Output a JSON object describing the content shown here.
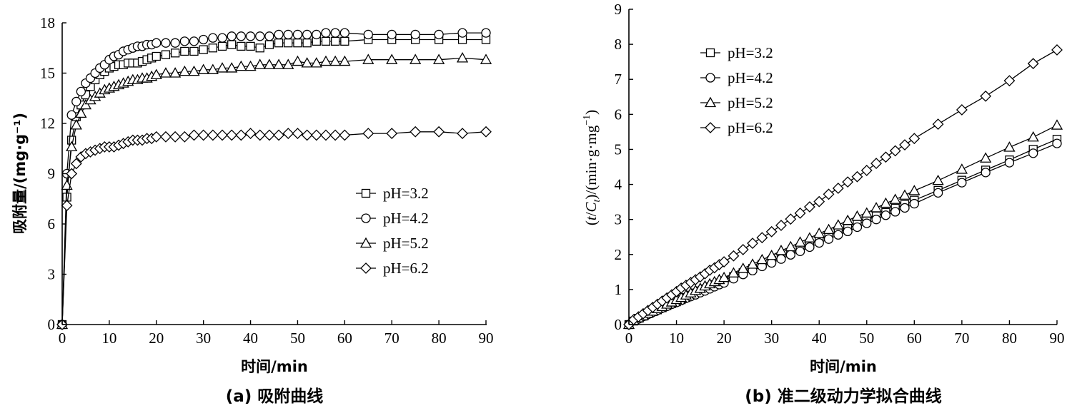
{
  "chart_data": [
    {
      "type": "line",
      "caption": "(a) 吸附曲线",
      "xlabel": "时间/min",
      "ylabel": "吸附量/(mg·g⁻¹)",
      "xlim": [
        0,
        90
      ],
      "ylim": [
        0,
        18
      ],
      "xticks": [
        0,
        10,
        20,
        30,
        40,
        50,
        60,
        70,
        80,
        90
      ],
      "yticks": [
        0,
        3,
        6,
        9,
        12,
        15,
        18
      ],
      "grid": false,
      "legend_position": "right-middle",
      "series": [
        {
          "name": "pH=3.2",
          "marker": "square",
          "x": [
            0,
            1,
            2,
            3,
            4,
            5,
            6,
            7,
            8,
            9,
            10,
            11,
            12,
            13,
            14,
            15,
            16,
            17,
            18,
            19,
            20,
            22,
            24,
            26,
            28,
            30,
            32,
            34,
            36,
            38,
            40,
            42,
            44,
            46,
            48,
            50,
            52,
            54,
            56,
            58,
            60,
            65,
            70,
            75,
            80,
            85,
            90
          ],
          "y": [
            0,
            7.6,
            11.0,
            12.4,
            13.1,
            13.7,
            14.2,
            14.6,
            14.9,
            15.1,
            15.3,
            15.4,
            15.5,
            15.5,
            15.6,
            15.6,
            15.6,
            15.7,
            15.8,
            15.9,
            16.0,
            16.1,
            16.2,
            16.3,
            16.3,
            16.4,
            16.5,
            16.6,
            16.7,
            16.6,
            16.6,
            16.5,
            16.7,
            16.8,
            16.8,
            16.8,
            16.8,
            16.9,
            16.9,
            16.9,
            16.9,
            17.0,
            17.0,
            17.0,
            17.0,
            17.0,
            17.0
          ]
        },
        {
          "name": "pH=4.2",
          "marker": "circle",
          "x": [
            0,
            1,
            2,
            3,
            4,
            5,
            6,
            7,
            8,
            9,
            10,
            11,
            12,
            13,
            14,
            15,
            16,
            17,
            18,
            19,
            20,
            22,
            24,
            26,
            28,
            30,
            32,
            34,
            36,
            38,
            40,
            42,
            44,
            46,
            48,
            50,
            52,
            54,
            56,
            58,
            60,
            65,
            70,
            75,
            80,
            85,
            90
          ],
          "y": [
            0,
            9.0,
            12.5,
            13.3,
            13.9,
            14.4,
            14.7,
            15.0,
            15.3,
            15.5,
            15.8,
            16.0,
            16.1,
            16.3,
            16.4,
            16.5,
            16.6,
            16.6,
            16.7,
            16.7,
            16.8,
            16.8,
            16.8,
            16.9,
            16.9,
            17.0,
            17.1,
            17.1,
            17.2,
            17.2,
            17.2,
            17.2,
            17.2,
            17.3,
            17.3,
            17.3,
            17.3,
            17.3,
            17.4,
            17.4,
            17.4,
            17.3,
            17.3,
            17.3,
            17.3,
            17.4,
            17.4
          ]
        },
        {
          "name": "pH=5.2",
          "marker": "triangle",
          "x": [
            0,
            1,
            2,
            3,
            4,
            5,
            6,
            7,
            8,
            9,
            10,
            11,
            12,
            13,
            14,
            15,
            16,
            17,
            18,
            19,
            20,
            22,
            24,
            26,
            28,
            30,
            32,
            34,
            36,
            38,
            40,
            42,
            44,
            46,
            48,
            50,
            52,
            54,
            56,
            58,
            60,
            65,
            70,
            75,
            80,
            85,
            90
          ],
          "y": [
            0,
            8.3,
            10.6,
            11.9,
            12.6,
            13.1,
            13.4,
            13.6,
            13.8,
            14.0,
            14.1,
            14.2,
            14.3,
            14.4,
            14.5,
            14.6,
            14.6,
            14.7,
            14.7,
            14.8,
            14.9,
            15.0,
            15.0,
            15.1,
            15.1,
            15.2,
            15.2,
            15.3,
            15.3,
            15.4,
            15.4,
            15.5,
            15.5,
            15.5,
            15.5,
            15.7,
            15.6,
            15.6,
            15.7,
            15.7,
            15.7,
            15.8,
            15.8,
            15.8,
            15.8,
            15.9,
            15.8
          ]
        },
        {
          "name": "pH=6.2",
          "marker": "diamond",
          "x": [
            0,
            1,
            2,
            3,
            4,
            5,
            6,
            7,
            8,
            9,
            10,
            11,
            12,
            13,
            14,
            15,
            16,
            17,
            18,
            19,
            20,
            22,
            24,
            26,
            28,
            30,
            32,
            34,
            36,
            38,
            40,
            42,
            44,
            46,
            48,
            50,
            52,
            54,
            56,
            58,
            60,
            65,
            70,
            75,
            80,
            85,
            90
          ],
          "y": [
            0,
            7.1,
            9.0,
            9.6,
            10.0,
            10.2,
            10.3,
            10.4,
            10.5,
            10.6,
            10.6,
            10.6,
            10.7,
            10.8,
            10.9,
            11.0,
            11.0,
            11.0,
            11.1,
            11.1,
            11.2,
            11.2,
            11.2,
            11.2,
            11.3,
            11.3,
            11.3,
            11.3,
            11.3,
            11.3,
            11.4,
            11.3,
            11.3,
            11.3,
            11.4,
            11.4,
            11.3,
            11.3,
            11.3,
            11.3,
            11.3,
            11.4,
            11.4,
            11.5,
            11.5,
            11.4,
            11.5
          ]
        }
      ]
    },
    {
      "type": "line",
      "caption": "(b) 准二级动力学拟合曲线",
      "xlabel": "时间/min",
      "ylabel": "(t/C_t)/(min·g·mg⁻¹)",
      "ylabel_parts": {
        "open": "(",
        "t": "t",
        "slash": "/",
        "C": "C",
        "sub": "t",
        "rest": ")/(min·g·mg",
        "sup": "−1",
        "close": ")"
      },
      "xlim": [
        0,
        90
      ],
      "ylim": [
        0,
        9
      ],
      "xticks": [
        0,
        10,
        20,
        30,
        40,
        50,
        60,
        70,
        80,
        90
      ],
      "yticks": [
        0,
        1,
        2,
        3,
        4,
        5,
        6,
        7,
        8,
        9
      ],
      "grid": false,
      "legend_position": "top-left",
      "series": [
        {
          "name": "pH=3.2",
          "marker": "square",
          "x": [
            0,
            1,
            2,
            3,
            4,
            5,
            6,
            7,
            8,
            9,
            10,
            11,
            12,
            13,
            14,
            15,
            16,
            17,
            18,
            19,
            20,
            22,
            24,
            26,
            28,
            30,
            32,
            34,
            36,
            38,
            40,
            42,
            44,
            46,
            48,
            50,
            52,
            54,
            56,
            58,
            60,
            65,
            70,
            75,
            80,
            85,
            90
          ],
          "y": [
            0,
            0.1,
            0.18,
            0.24,
            0.31,
            0.37,
            0.42,
            0.48,
            0.54,
            0.6,
            0.65,
            0.71,
            0.77,
            0.84,
            0.9,
            0.96,
            1.02,
            1.08,
            1.14,
            1.19,
            1.25,
            1.37,
            1.48,
            1.6,
            1.72,
            1.83,
            1.94,
            2.05,
            2.16,
            2.29,
            2.41,
            2.55,
            2.64,
            2.74,
            2.86,
            2.98,
            3.1,
            3.2,
            3.32,
            3.43,
            3.55,
            3.83,
            4.12,
            4.41,
            4.7,
            5.0,
            5.29
          ]
        },
        {
          "name": "pH=4.2",
          "marker": "circle",
          "x": [
            0,
            1,
            2,
            3,
            4,
            5,
            6,
            7,
            8,
            9,
            10,
            11,
            12,
            13,
            14,
            15,
            16,
            17,
            18,
            19,
            20,
            22,
            24,
            26,
            28,
            30,
            32,
            34,
            36,
            38,
            40,
            42,
            44,
            46,
            48,
            50,
            52,
            54,
            56,
            58,
            60,
            65,
            70,
            75,
            80,
            85,
            90
          ],
          "y": [
            0,
            0.11,
            0.16,
            0.23,
            0.29,
            0.35,
            0.41,
            0.47,
            0.52,
            0.58,
            0.63,
            0.69,
            0.75,
            0.8,
            0.85,
            0.91,
            0.96,
            1.02,
            1.08,
            1.14,
            1.19,
            1.31,
            1.43,
            1.54,
            1.66,
            1.76,
            1.87,
            1.99,
            2.09,
            2.21,
            2.33,
            2.44,
            2.56,
            2.66,
            2.78,
            2.89,
            3.0,
            3.12,
            3.22,
            3.33,
            3.45,
            3.76,
            4.05,
            4.34,
            4.62,
            4.89,
            5.17
          ]
        },
        {
          "name": "pH=5.2",
          "marker": "triangle",
          "x": [
            0,
            1,
            2,
            3,
            4,
            5,
            6,
            7,
            8,
            9,
            10,
            11,
            12,
            13,
            14,
            15,
            16,
            17,
            18,
            19,
            20,
            22,
            24,
            26,
            28,
            30,
            32,
            34,
            36,
            38,
            40,
            42,
            44,
            46,
            48,
            50,
            52,
            54,
            56,
            58,
            60,
            65,
            70,
            75,
            80,
            85,
            90
          ],
          "y": [
            0,
            0.12,
            0.19,
            0.25,
            0.32,
            0.38,
            0.45,
            0.51,
            0.58,
            0.64,
            0.71,
            0.77,
            0.84,
            0.9,
            0.97,
            1.03,
            1.1,
            1.16,
            1.22,
            1.28,
            1.34,
            1.47,
            1.6,
            1.72,
            1.85,
            1.97,
            2.11,
            2.22,
            2.35,
            2.47,
            2.6,
            2.71,
            2.84,
            2.97,
            3.09,
            3.18,
            3.33,
            3.46,
            3.57,
            3.69,
            3.82,
            4.11,
            4.43,
            4.75,
            5.06,
            5.35,
            5.69
          ]
        },
        {
          "name": "pH=6.2",
          "marker": "diamond",
          "x": [
            0,
            1,
            2,
            3,
            4,
            5,
            6,
            7,
            8,
            9,
            10,
            11,
            12,
            13,
            14,
            15,
            16,
            17,
            18,
            19,
            20,
            22,
            24,
            26,
            28,
            30,
            32,
            34,
            36,
            38,
            40,
            42,
            44,
            46,
            48,
            50,
            52,
            54,
            56,
            58,
            60,
            65,
            70,
            75,
            80,
            85,
            90
          ],
          "y": [
            0,
            0.14,
            0.22,
            0.31,
            0.4,
            0.49,
            0.58,
            0.67,
            0.76,
            0.85,
            0.94,
            1.04,
            1.12,
            1.2,
            1.28,
            1.36,
            1.45,
            1.55,
            1.62,
            1.71,
            1.79,
            1.96,
            2.14,
            2.32,
            2.48,
            2.65,
            2.83,
            3.01,
            3.18,
            3.36,
            3.51,
            3.72,
            3.89,
            4.07,
            4.22,
            4.4,
            4.6,
            4.78,
            4.96,
            5.13,
            5.31,
            5.72,
            6.13,
            6.52,
            6.96,
            7.45,
            7.84
          ]
        }
      ]
    }
  ]
}
